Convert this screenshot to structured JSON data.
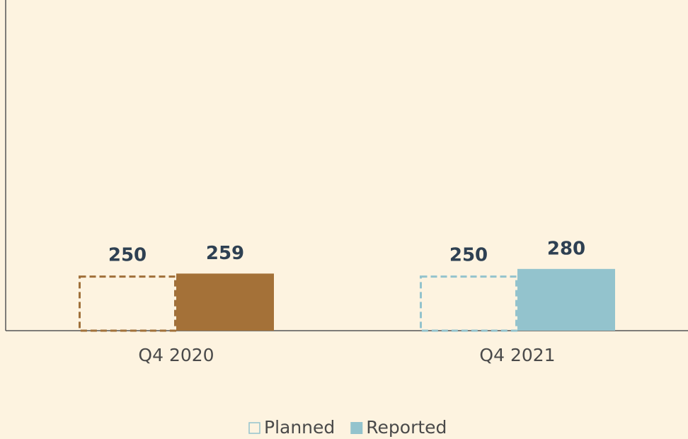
{
  "chart_data": {
    "type": "bar",
    "categories": [
      "Q4 2020",
      "Q4 2021"
    ],
    "series": [
      {
        "name": "Planned",
        "style": "dashed",
        "color": "#93c3cd",
        "colors": [
          "#a0703a",
          "#93c3cd"
        ],
        "values": [
          250,
          250
        ]
      },
      {
        "name": "Reported",
        "style": "filled",
        "color": "#93c3cd",
        "colors": [
          "#a47138",
          "#93c3cd"
        ],
        "values": [
          259,
          280
        ]
      }
    ],
    "ylim": [
      0,
      1500
    ],
    "grid": false,
    "legend": "bottom"
  }
}
